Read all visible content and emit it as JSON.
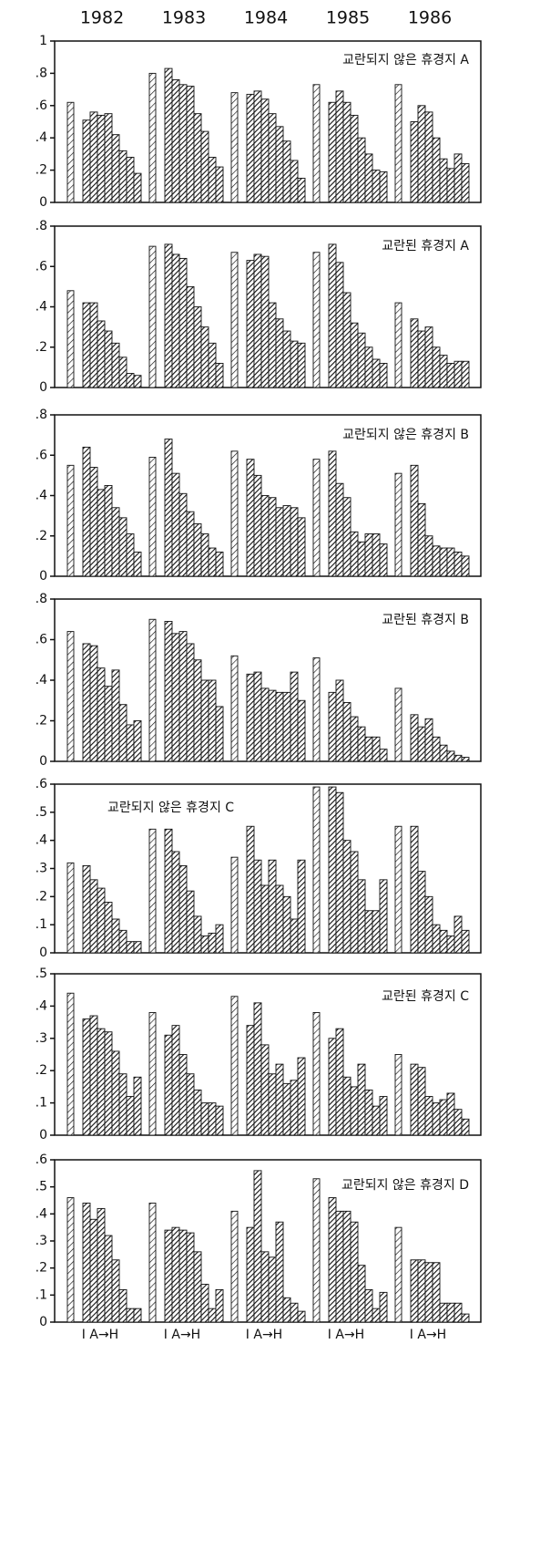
{
  "years": [
    "1982",
    "1983",
    "1984",
    "1985",
    "1986"
  ],
  "x_axis_label": "I A→H",
  "chart_data": [
    {
      "type": "bar",
      "title": "교란되지 않은 휴경지 A",
      "ylim": [
        0,
        1
      ],
      "yticks": [
        0,
        {
          "value": 0.2,
          "label": ".2"
        },
        {
          "value": 0.4,
          "label": ".4"
        },
        {
          "value": 0.6,
          "label": ".6"
        },
        {
          "value": 0.8,
          "label": ".8"
        },
        1
      ],
      "values": [
        [
          0.62,
          0.51,
          0.56,
          0.54,
          0.55,
          0.42,
          0.32,
          0.28,
          0.18
        ],
        [
          0.8,
          0.83,
          0.76,
          0.73,
          0.72,
          0.55,
          0.44,
          0.28,
          0.22
        ],
        [
          0.68,
          0.67,
          0.69,
          0.64,
          0.55,
          0.47,
          0.38,
          0.26,
          0.15
        ],
        [
          0.73,
          0.62,
          0.69,
          0.62,
          0.54,
          0.4,
          0.3,
          0.2,
          0.19
        ],
        [
          0.73,
          0.5,
          0.6,
          0.56,
          0.4,
          0.27,
          0.21,
          0.3,
          0.24
        ]
      ]
    },
    {
      "type": "bar",
      "title": "교란된 휴경지 A",
      "ylim": [
        0,
        0.8
      ],
      "yticks": [
        0,
        {
          "value": 0.2,
          "label": ".2"
        },
        {
          "value": 0.4,
          "label": ".4"
        },
        {
          "value": 0.6,
          "label": ".6"
        },
        {
          "value": 0.8,
          "label": ".8"
        }
      ],
      "values": [
        [
          0.48,
          0.42,
          0.42,
          0.33,
          0.28,
          0.22,
          0.15,
          0.07,
          0.06
        ],
        [
          0.7,
          0.71,
          0.66,
          0.64,
          0.5,
          0.4,
          0.3,
          0.22,
          0.12
        ],
        [
          0.67,
          0.63,
          0.66,
          0.65,
          0.42,
          0.34,
          0.28,
          0.23,
          0.22
        ],
        [
          0.67,
          0.71,
          0.62,
          0.47,
          0.32,
          0.27,
          0.2,
          0.14,
          0.12
        ],
        [
          0.42,
          0.34,
          0.28,
          0.3,
          0.2,
          0.16,
          0.12,
          0.13,
          0.13
        ]
      ]
    },
    {
      "type": "bar",
      "title": "교란되지 않은 휴경지 B",
      "ylim": [
        0,
        0.8
      ],
      "yticks": [
        0,
        {
          "value": 0.2,
          "label": ".2"
        },
        {
          "value": 0.4,
          "label": ".4"
        },
        {
          "value": 0.6,
          "label": ".6"
        },
        {
          "value": 0.8,
          "label": ".8"
        }
      ],
      "values": [
        [
          0.55,
          0.64,
          0.54,
          0.43,
          0.45,
          0.34,
          0.29,
          0.21,
          0.12
        ],
        [
          0.59,
          0.68,
          0.51,
          0.41,
          0.32,
          0.26,
          0.21,
          0.14,
          0.12
        ],
        [
          0.62,
          0.58,
          0.5,
          0.4,
          0.39,
          0.34,
          0.35,
          0.34,
          0.29
        ],
        [
          0.58,
          0.62,
          0.46,
          0.39,
          0.22,
          0.17,
          0.21,
          0.21,
          0.16
        ],
        [
          0.51,
          0.55,
          0.36,
          0.2,
          0.15,
          0.14,
          0.14,
          0.12,
          0.1
        ]
      ]
    },
    {
      "type": "bar",
      "title": "교란된 휴경지 B",
      "ylim": [
        0,
        0.8
      ],
      "yticks": [
        0,
        {
          "value": 0.2,
          "label": ".2"
        },
        {
          "value": 0.4,
          "label": ".4"
        },
        {
          "value": 0.6,
          "label": ".6"
        },
        {
          "value": 0.8,
          "label": ".8"
        }
      ],
      "values": [
        [
          0.64,
          0.58,
          0.57,
          0.46,
          0.37,
          0.45,
          0.28,
          0.18,
          0.2
        ],
        [
          0.7,
          0.69,
          0.63,
          0.64,
          0.58,
          0.5,
          0.4,
          0.4,
          0.27
        ],
        [
          0.52,
          0.43,
          0.44,
          0.36,
          0.35,
          0.34,
          0.34,
          0.44,
          0.3
        ],
        [
          0.51,
          0.34,
          0.4,
          0.29,
          0.22,
          0.17,
          0.12,
          0.12,
          0.06
        ],
        [
          0.36,
          0.23,
          0.17,
          0.21,
          0.12,
          0.08,
          0.05,
          0.03,
          0.02
        ]
      ]
    },
    {
      "type": "bar",
      "title": "교란되지 않은 휴경지 C",
      "ylim": [
        0,
        0.6
      ],
      "yticks": [
        0,
        {
          "value": 0.1,
          "label": ".1"
        },
        {
          "value": 0.2,
          "label": ".2"
        },
        {
          "value": 0.3,
          "label": ".3"
        },
        {
          "value": 0.4,
          "label": ".4"
        },
        {
          "value": 0.5,
          "label": ".5"
        },
        {
          "value": 0.6,
          "label": ".6"
        }
      ],
      "values": [
        [
          0.32,
          0.31,
          0.26,
          0.23,
          0.18,
          0.12,
          0.08,
          0.04,
          0.04
        ],
        [
          0.44,
          0.44,
          0.36,
          0.31,
          0.22,
          0.13,
          0.06,
          0.07,
          0.1
        ],
        [
          0.34,
          0.45,
          0.33,
          0.24,
          0.33,
          0.24,
          0.2,
          0.12,
          0.33
        ],
        [
          0.59,
          0.59,
          0.57,
          0.4,
          0.36,
          0.26,
          0.15,
          0.15,
          0.26
        ],
        [
          0.45,
          0.45,
          0.29,
          0.2,
          0.1,
          0.08,
          0.06,
          0.13,
          0.08
        ]
      ]
    },
    {
      "type": "bar",
      "title": "교란된 휴경지 C",
      "ylim": [
        0,
        0.5
      ],
      "yticks": [
        0,
        {
          "value": 0.1,
          "label": ".1"
        },
        {
          "value": 0.2,
          "label": ".2"
        },
        {
          "value": 0.3,
          "label": ".3"
        },
        {
          "value": 0.4,
          "label": ".4"
        },
        {
          "value": 0.5,
          "label": ".5"
        }
      ],
      "values": [
        [
          0.44,
          0.36,
          0.37,
          0.33,
          0.32,
          0.26,
          0.19,
          0.12,
          0.18
        ],
        [
          0.38,
          0.31,
          0.34,
          0.25,
          0.19,
          0.14,
          0.1,
          0.1,
          0.09
        ],
        [
          0.43,
          0.34,
          0.41,
          0.28,
          0.19,
          0.22,
          0.16,
          0.17,
          0.24
        ],
        [
          0.38,
          0.3,
          0.33,
          0.18,
          0.15,
          0.22,
          0.14,
          0.09,
          0.12
        ],
        [
          0.25,
          0.22,
          0.21,
          0.12,
          0.1,
          0.11,
          0.13,
          0.08,
          0.05
        ]
      ]
    },
    {
      "type": "bar",
      "title": "교란되지 않은 휴경지 D",
      "ylim": [
        0,
        0.6
      ],
      "yticks": [
        0,
        {
          "value": 0.1,
          "label": ".1"
        },
        {
          "value": 0.2,
          "label": ".2"
        },
        {
          "value": 0.3,
          "label": ".3"
        },
        {
          "value": 0.4,
          "label": ".4"
        },
        {
          "value": 0.5,
          "label": ".5"
        },
        {
          "value": 0.6,
          "label": ".6"
        }
      ],
      "values": [
        [
          0.46,
          0.44,
          0.38,
          0.42,
          0.32,
          0.23,
          0.12,
          0.05,
          0.05
        ],
        [
          0.44,
          0.34,
          0.35,
          0.34,
          0.33,
          0.26,
          0.14,
          0.05,
          0.12
        ],
        [
          0.41,
          0.35,
          0.56,
          0.26,
          0.24,
          0.37,
          0.09,
          0.07,
          0.04
        ],
        [
          0.53,
          0.46,
          0.41,
          0.41,
          0.37,
          0.21,
          0.12,
          0.05,
          0.11
        ],
        [
          0.35,
          0.23,
          0.23,
          0.22,
          0.22,
          0.07,
          0.07,
          0.07,
          0.03
        ]
      ]
    }
  ]
}
